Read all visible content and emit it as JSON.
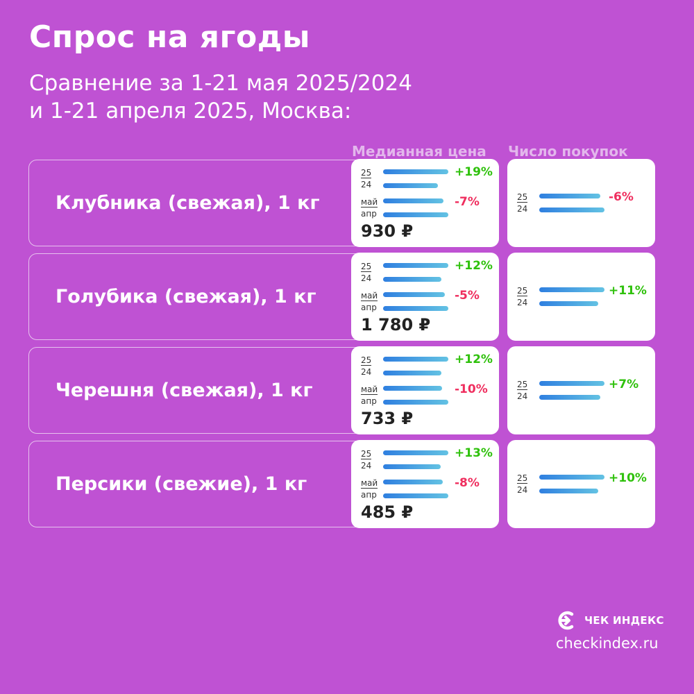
{
  "title": "Спрос на ягоды",
  "subtitle_line1": "Сравнение за 1-21 мая 2025/2024",
  "subtitle_line2": "и 1-21 апреля 2025, Москва:",
  "col_price": "Медианная цена",
  "col_count": "Число покупок",
  "labels": {
    "y25": "25",
    "y24": "24",
    "may": "май",
    "apr": "апр"
  },
  "brand": "ЧЕК ИНДЕКС",
  "site": "checkindex.ru",
  "colors": {
    "background": "#bf52d3",
    "positive": "#2fc10c",
    "negative": "#ef2e5e",
    "bar_start": "#2f7fe0",
    "bar_end": "#63c2e3"
  },
  "chart_data": {
    "type": "bar",
    "categories": [
      "Клубника (свежая), 1 кг",
      "Голубика (свежая), 1 кг",
      "Черешня (свежая), 1 кг",
      "Персики (свежие), 1 кг"
    ],
    "rows": [
      {
        "name": "Клубника (свежая), 1 кг",
        "price": "930 ₽",
        "price_yoy": "+19%",
        "price_yoy_value": 19,
        "price_mom": "-7%",
        "price_mom_value": -7,
        "count_yoy": "-6%",
        "count_yoy_value": -6
      },
      {
        "name": "Голубика (свежая), 1 кг",
        "price": "1 780 ₽",
        "price_yoy": "+12%",
        "price_yoy_value": 12,
        "price_mom": "-5%",
        "price_mom_value": -5,
        "count_yoy": "+11%",
        "count_yoy_value": 11
      },
      {
        "name": "Черешня (свежая), 1 кг",
        "price": "733 ₽",
        "price_yoy": "+12%",
        "price_yoy_value": 12,
        "price_mom": "-10%",
        "price_mom_value": -10,
        "count_yoy": "+7%",
        "count_yoy_value": 7
      },
      {
        "name": "Персики (свежие), 1 кг",
        "price": "485 ₽",
        "price_yoy": "+13%",
        "price_yoy_value": 13,
        "price_mom": "-8%",
        "price_mom_value": -8,
        "count_yoy": "+10%",
        "count_yoy_value": 10
      }
    ]
  }
}
